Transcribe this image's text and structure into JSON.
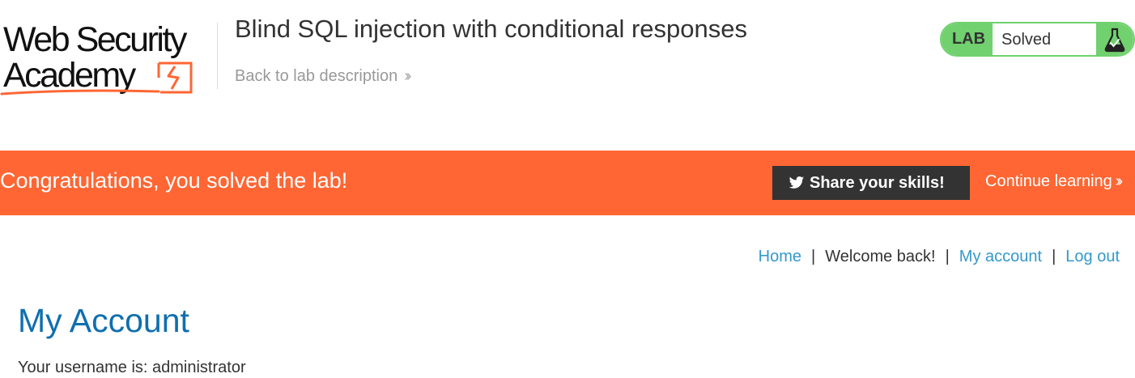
{
  "header": {
    "logo": {
      "line1": "Web Security",
      "line2": "Academy"
    },
    "lab_title": "Blind SQL injection with conditional responses",
    "back_link": "Back to lab description",
    "lab_status": {
      "tag": "LAB",
      "status": "Solved",
      "icon": "flask-icon"
    }
  },
  "banner": {
    "message": "Congratulations, you solved the lab!",
    "share_button": "Share your skills!",
    "share_icon": "twitter-bird-icon",
    "continue_link": "Continue learning",
    "background_color": "#ff6633"
  },
  "nav": {
    "home": "Home",
    "welcome": "Welcome back!",
    "my_account": "My account",
    "log_out": "Log out",
    "separator": "|"
  },
  "main": {
    "heading": "My Account",
    "username_line": "Your username is: administrator"
  },
  "colors": {
    "accent_link": "#3399cc",
    "heading": "#0f6fae",
    "lab_solved_green": "#70d16e",
    "banner_orange": "#ff6633"
  }
}
